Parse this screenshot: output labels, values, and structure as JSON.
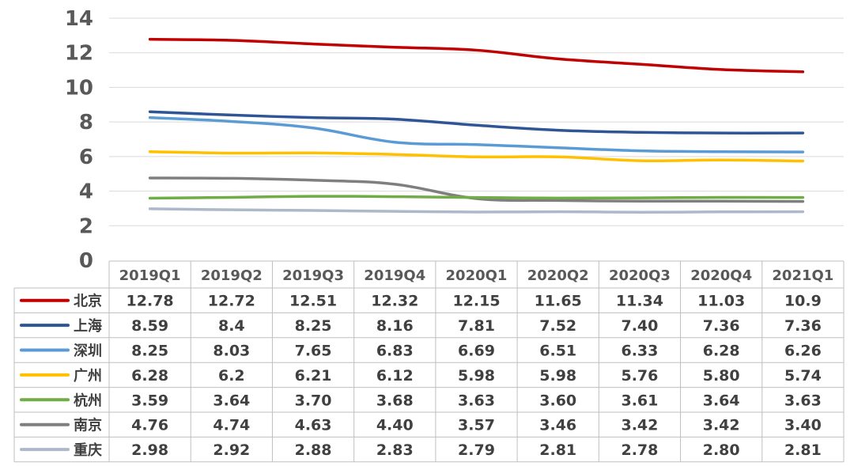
{
  "chart_data": {
    "type": "line",
    "categories": [
      "2019Q1",
      "2019Q2",
      "2019Q3",
      "2019Q4",
      "2020Q1",
      "2020Q2",
      "2020Q3",
      "2020Q4",
      "2021Q1"
    ],
    "ylim": [
      0,
      14
    ],
    "yticks": [
      0,
      2,
      4,
      6,
      8,
      10,
      12,
      14
    ],
    "grid": true,
    "legend": "data-table",
    "series": [
      {
        "name": "北京",
        "color": "#C00000",
        "values": [
          12.78,
          12.72,
          12.51,
          12.32,
          12.15,
          11.65,
          11.34,
          11.03,
          10.9
        ],
        "labels": [
          "12.78",
          "12.72",
          "12.51",
          "12.32",
          "12.15",
          "11.65",
          "11.34",
          "11.03",
          "10.9"
        ]
      },
      {
        "name": "上海",
        "color": "#2F5597",
        "values": [
          8.59,
          8.4,
          8.25,
          8.16,
          7.81,
          7.52,
          7.4,
          7.36,
          7.36
        ],
        "labels": [
          "8.59",
          "8.4",
          "8.25",
          "8.16",
          "7.81",
          "7.52",
          "7.40",
          "7.36",
          "7.36"
        ]
      },
      {
        "name": "深圳",
        "color": "#5B9BD5",
        "values": [
          8.25,
          8.03,
          7.65,
          6.83,
          6.69,
          6.51,
          6.33,
          6.28,
          6.26
        ],
        "labels": [
          "8.25",
          "8.03",
          "7.65",
          "6.83",
          "6.69",
          "6.51",
          "6.33",
          "6.28",
          "6.26"
        ]
      },
      {
        "name": "广州",
        "color": "#FFC000",
        "values": [
          6.28,
          6.2,
          6.21,
          6.12,
          5.98,
          5.98,
          5.76,
          5.8,
          5.74
        ],
        "labels": [
          "6.28",
          "6.2",
          "6.21",
          "6.12",
          "5.98",
          "5.98",
          "5.76",
          "5.80",
          "5.74"
        ]
      },
      {
        "name": "杭州",
        "color": "#70AD47",
        "values": [
          3.59,
          3.64,
          3.7,
          3.68,
          3.63,
          3.6,
          3.61,
          3.64,
          3.63
        ],
        "labels": [
          "3.59",
          "3.64",
          "3.70",
          "3.68",
          "3.63",
          "3.60",
          "3.61",
          "3.64",
          "3.63"
        ]
      },
      {
        "name": "南京",
        "color": "#7F7F7F",
        "values": [
          4.76,
          4.74,
          4.63,
          4.4,
          3.57,
          3.46,
          3.42,
          3.42,
          3.4
        ],
        "labels": [
          "4.76",
          "4.74",
          "4.63",
          "4.40",
          "3.57",
          "3.46",
          "3.42",
          "3.42",
          "3.40"
        ]
      },
      {
        "name": "重庆",
        "color": "#ADB9CA",
        "values": [
          2.98,
          2.92,
          2.88,
          2.83,
          2.79,
          2.81,
          2.78,
          2.8,
          2.81
        ],
        "labels": [
          "2.98",
          "2.92",
          "2.88",
          "2.83",
          "2.79",
          "2.81",
          "2.78",
          "2.80",
          "2.81"
        ]
      }
    ]
  }
}
